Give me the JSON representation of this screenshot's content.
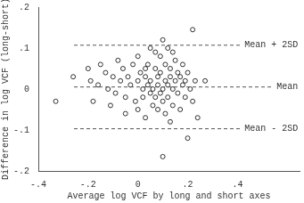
{
  "chart_data": {
    "type": "scatter",
    "x_label": "Average log VCF by long and short axes",
    "y_label": "Difference in log VCF (long-short)",
    "xlim": [
      -0.4,
      0.65
    ],
    "ylim": [
      -0.2,
      0.2
    ],
    "xticks": [
      {
        "value": -0.4,
        "label": "-.4"
      },
      {
        "value": -0.2,
        "label": "-.2"
      },
      0,
      {
        "value": 0.2,
        "label": ".2"
      },
      {
        "value": 0.4,
        "label": ".4"
      }
    ],
    "yticks": [
      {
        "value": -0.2,
        "label": "-.2"
      },
      {
        "value": -0.1,
        "label": "-.1"
      },
      0,
      {
        "value": 0.1,
        "label": ".1"
      },
      {
        "value": 0.2,
        "label": ".2"
      }
    ],
    "grid": false,
    "marker": "circle",
    "color": "#000000",
    "x": [
      -0.33,
      -0.26,
      -0.2,
      -0.19,
      -0.18,
      -0.16,
      -0.15,
      -0.13,
      -0.12,
      -0.1,
      -0.09,
      -0.08,
      -0.07,
      -0.06,
      -0.05,
      -0.04,
      -0.03,
      -0.02,
      -0.01,
      0.0,
      0.0,
      0.01,
      0.02,
      0.02,
      0.03,
      0.03,
      0.04,
      0.04,
      0.05,
      0.05,
      0.06,
      0.06,
      0.07,
      0.07,
      0.07,
      0.08,
      0.08,
      0.08,
      0.09,
      0.09,
      0.09,
      0.1,
      0.1,
      0.1,
      0.1,
      0.11,
      0.11,
      0.11,
      0.12,
      0.12,
      0.12,
      0.13,
      0.13,
      0.13,
      0.14,
      0.14,
      0.15,
      0.15,
      0.16,
      0.16,
      0.17,
      0.17,
      0.18,
      0.18,
      0.19,
      0.19,
      0.2,
      0.2,
      0.21,
      0.22,
      0.22,
      0.23,
      0.24,
      0.27,
      0.05,
      -0.05,
      0.0,
      0.03,
      0.14,
      -0.11
    ],
    "values": [
      -0.03,
      0.03,
      0.05,
      0.02,
      -0.03,
      0.01,
      0.06,
      0.04,
      0.0,
      0.03,
      -0.01,
      0.07,
      0.02,
      0.05,
      -0.02,
      0.03,
      0.01,
      0.06,
      -0.03,
      0.02,
      -0.05,
      0.04,
      0.0,
      -0.02,
      0.03,
      -0.07,
      0.01,
      0.06,
      -0.01,
      0.02,
      -0.04,
      0.0,
      0.05,
      -0.02,
      0.09,
      0.01,
      -0.05,
      0.03,
      0.08,
      -0.01,
      0.04,
      0.12,
      0.0,
      -0.03,
      -0.165,
      0.02,
      0.06,
      -0.06,
      0.01,
      0.1,
      -0.02,
      0.03,
      -0.08,
      0.05,
      0.0,
      -0.04,
      0.02,
      0.07,
      -0.01,
      0.04,
      0.03,
      -0.05,
      0.01,
      0.06,
      -0.02,
      0.02,
      -0.12,
      0.04,
      0.0,
      0.145,
      -0.03,
      0.02,
      -0.07,
      0.02,
      0.1,
      -0.06,
      0.08,
      0.05,
      0.09,
      -0.04
    ],
    "reference_lines": [
      {
        "value": 0.107,
        "label": "Mean + 2SD",
        "line_style": "dashed"
      },
      {
        "value": 0.005,
        "label": "Mean",
        "line_style": "dashed"
      },
      {
        "value": -0.097,
        "label": "Mean - 2SD",
        "line_style": "dashed"
      }
    ]
  }
}
